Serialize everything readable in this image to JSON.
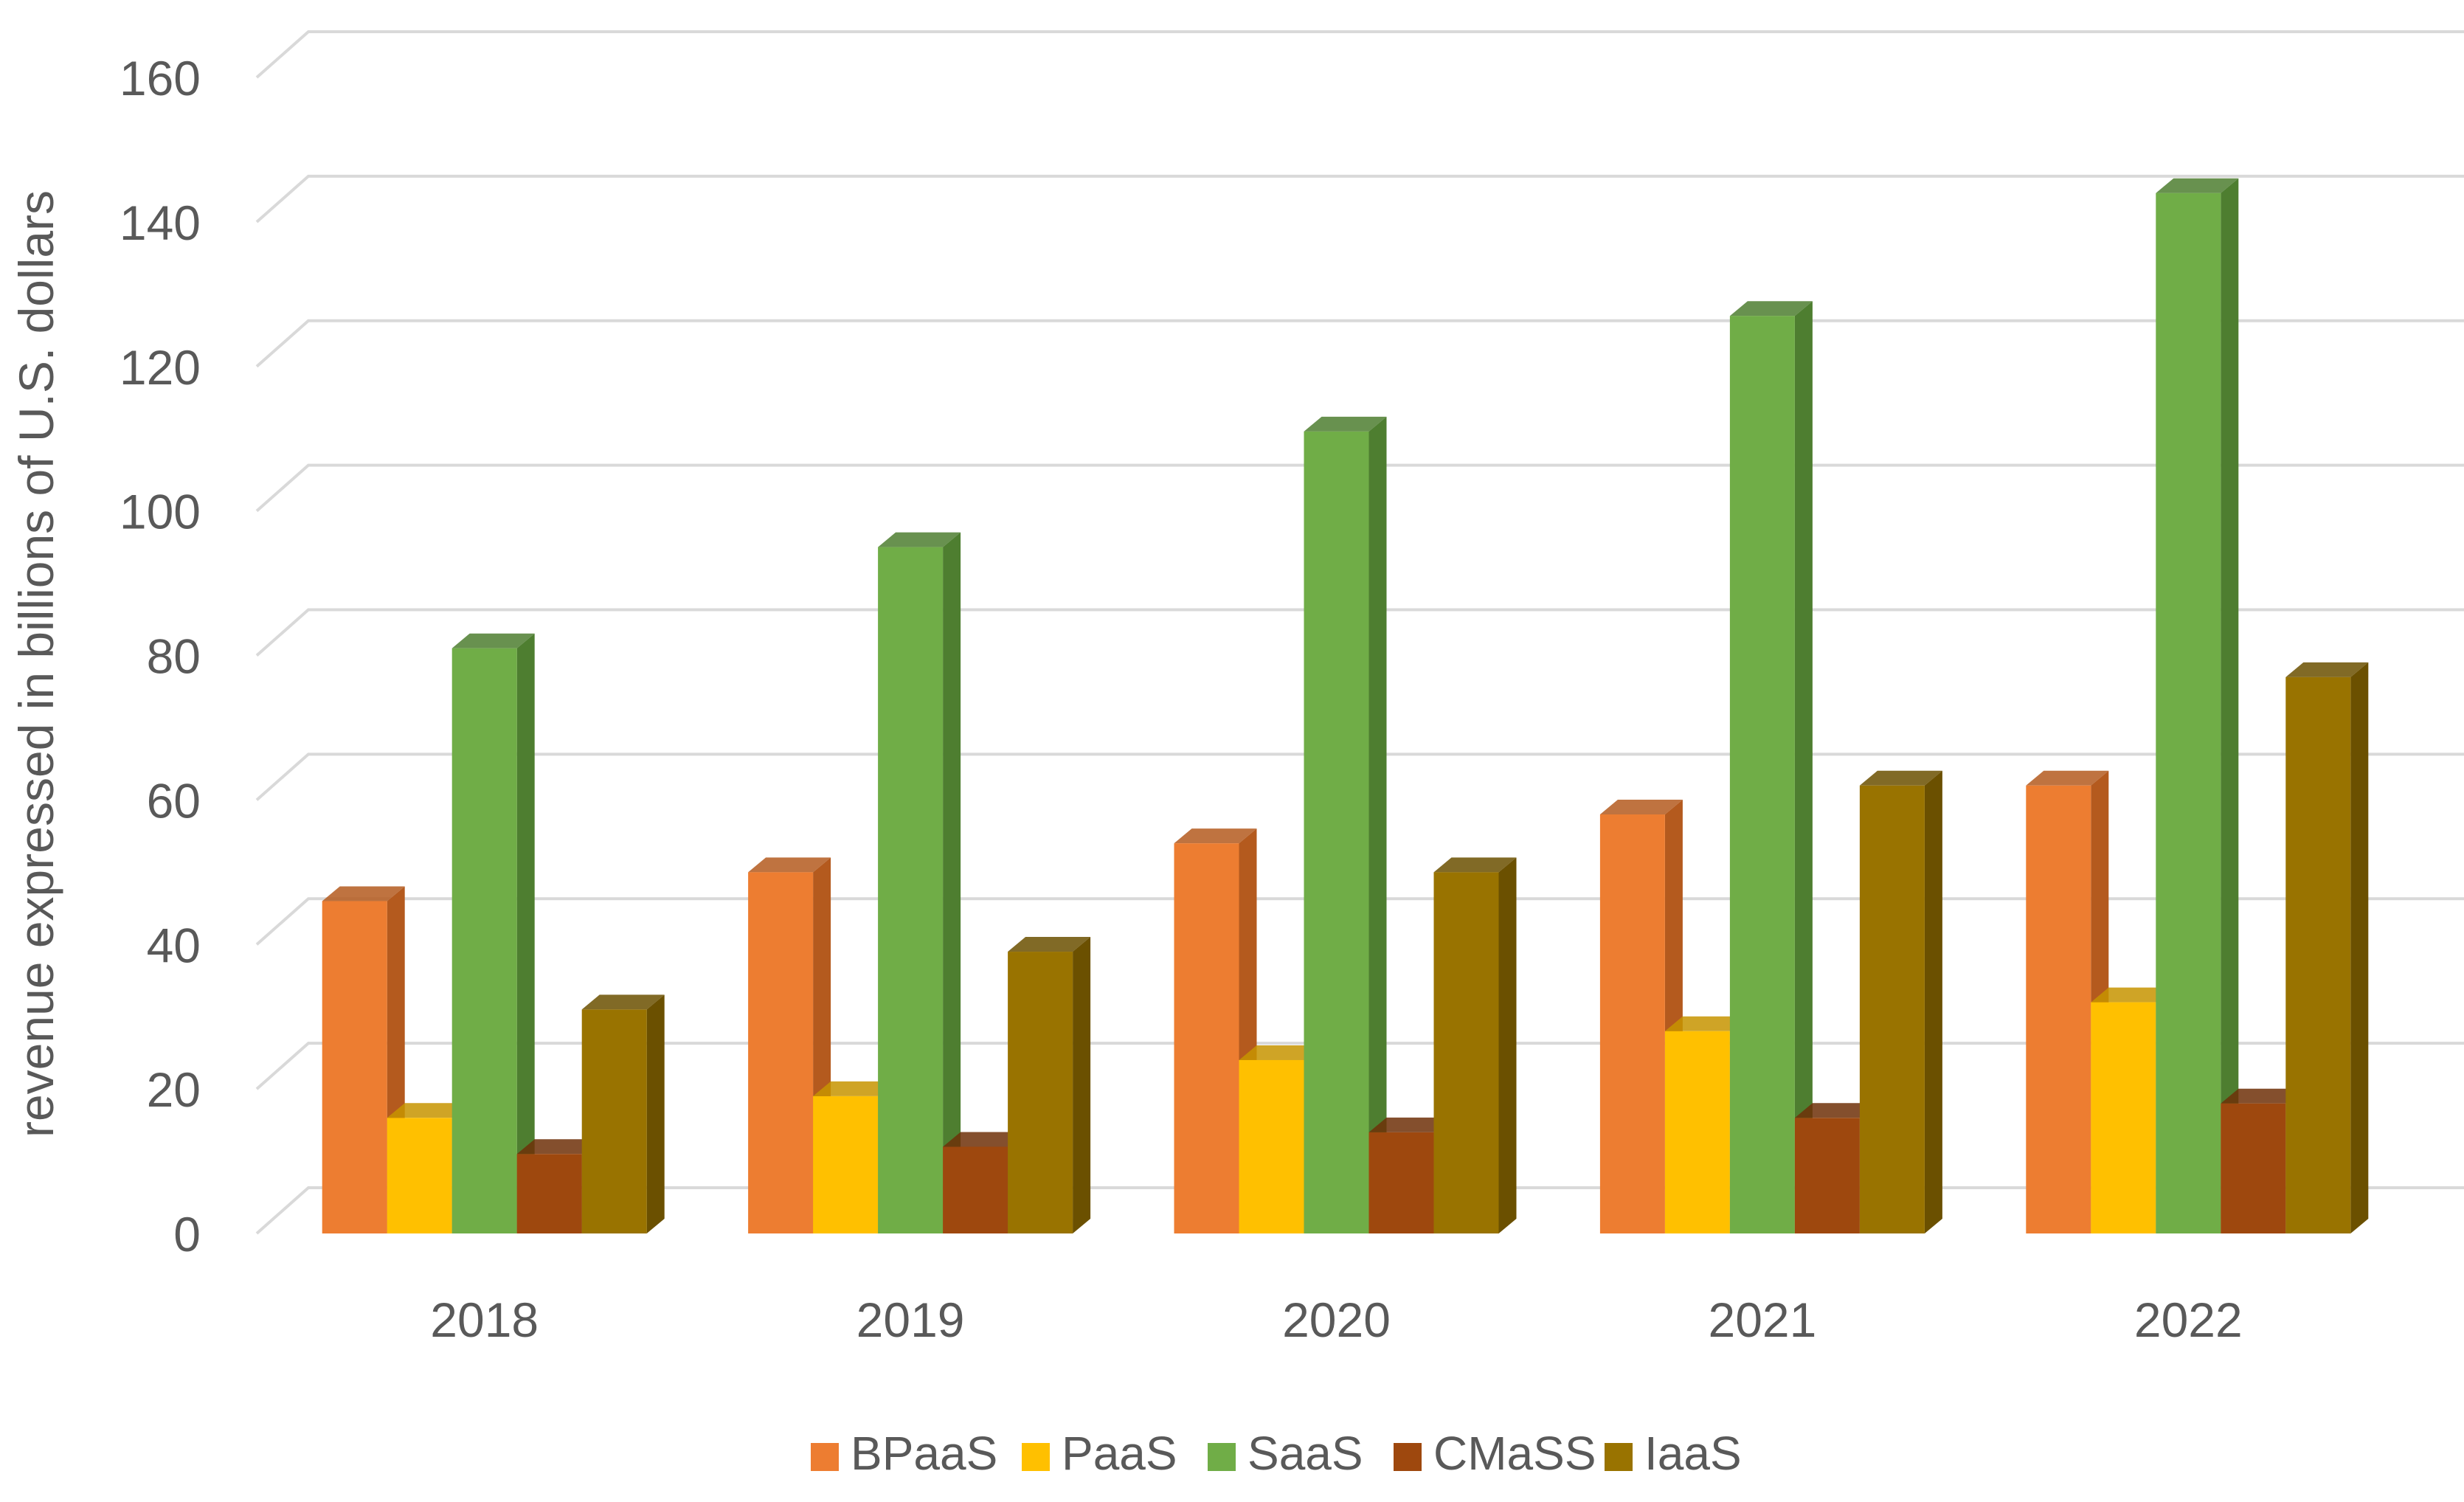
{
  "chart_data": {
    "type": "bar",
    "subtype": "3d-clustered-column",
    "title": "",
    "xlabel": "",
    "ylabel": "revenue expressed in billions of U.S. dollars",
    "ylim": [
      0,
      160
    ],
    "yticks": [
      0,
      20,
      40,
      60,
      80,
      100,
      120,
      140,
      160
    ],
    "grid": true,
    "legend_position": "bottom",
    "categories": [
      "2018",
      "2019",
      "2020",
      "2021",
      "2022"
    ],
    "series": [
      {
        "name": "BPaaS",
        "color": "#ED7D31",
        "side_color": "#B45A1E",
        "values": [
          46,
          50,
          54,
          58,
          62
        ]
      },
      {
        "name": "PaaS",
        "color": "#FFC000",
        "side_color": "#C79400",
        "values": [
          16,
          19,
          24,
          28,
          32
        ]
      },
      {
        "name": "SaaS",
        "color": "#70AD47",
        "side_color": "#4E7E30",
        "values": [
          81,
          95,
          111,
          127,
          144
        ]
      },
      {
        "name": "CMaSS",
        "color": "#9E480E",
        "side_color": "#6E3008",
        "values": [
          11,
          12,
          14,
          16,
          18
        ]
      },
      {
        "name": "IaaS",
        "color": "#997300",
        "side_color": "#6B5000",
        "values": [
          31,
          39,
          50,
          62,
          77
        ]
      }
    ]
  }
}
